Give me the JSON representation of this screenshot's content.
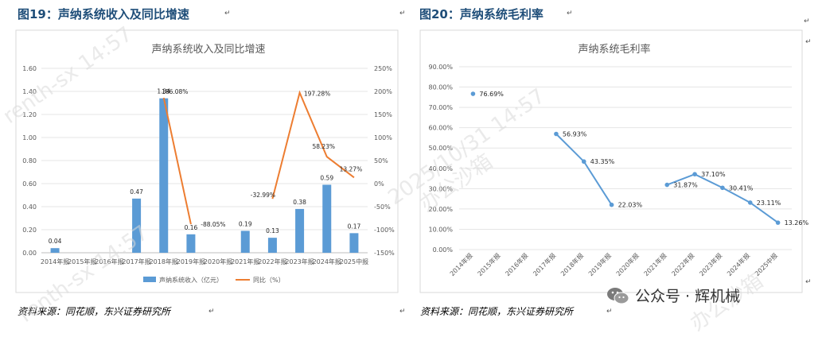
{
  "left": {
    "fig_title": "图19：声纳系统收入及同比增速",
    "source": "资料来源：同花顺，东兴证券研究所"
  },
  "right": {
    "fig_title": "图20：声纳系统毛利率",
    "source": "资料来源：同花顺，东兴证券研究所"
  },
  "watermark": {
    "line1": "renth-sx 14:57",
    "line2": "2025/10/31 14:57",
    "line3": "办公沙箱"
  },
  "wechat": {
    "label": "公众号 · 辉机械"
  },
  "colors": {
    "bar": "#5b9bd5",
    "line": "#ed7d31",
    "gross": "#5b9bd5",
    "title": "#1f4e79"
  },
  "chart_data": [
    {
      "type": "bar",
      "title": "声纳系统收入及同比增速",
      "categories": [
        "2014年报",
        "2015年报",
        "2016年报",
        "2017年报",
        "2018年报",
        "2019年报",
        "2020年报",
        "2021年报",
        "2022年报",
        "2023年报",
        "2024年报",
        "2025中报"
      ],
      "series": [
        {
          "name": "声纳系统收入（亿元）",
          "type": "bar",
          "axis": "left",
          "values": [
            0.04,
            null,
            null,
            0.47,
            1.34,
            0.16,
            null,
            0.19,
            0.13,
            0.38,
            0.59,
            0.17
          ],
          "labels": [
            "0.04",
            "",
            "",
            "0.47",
            "1.34",
            "0.16",
            "",
            "0.19",
            "0.13",
            "0.38",
            "0.59",
            "0.17"
          ]
        },
        {
          "name": "同比（%）",
          "type": "line",
          "axis": "right",
          "values": [
            null,
            null,
            null,
            null,
            186.08,
            -88.05,
            null,
            null,
            -32.99,
            197.28,
            58.23,
            13.27
          ],
          "labels": [
            "",
            "",
            "",
            "",
            "186.08%",
            "-88.05%",
            "",
            "",
            "-32.99%",
            "197.28%",
            "58.23%",
            "13.27%"
          ]
        }
      ],
      "ylim_left": [
        0,
        1.6
      ],
      "yticks_left": [
        "0.00",
        "0.20",
        "0.40",
        "0.60",
        "0.80",
        "1.00",
        "1.20",
        "1.40",
        "1.60"
      ],
      "ylim_right": [
        -150,
        250
      ],
      "yticks_right": [
        "-150%",
        "-100%",
        "-50%",
        "0%",
        "50%",
        "100%",
        "150%",
        "200%",
        "250%"
      ],
      "legend_position": "bottom",
      "grid": true
    },
    {
      "type": "line",
      "title": "声纳系统毛利率",
      "categories": [
        "2014年报",
        "2015年报",
        "2016年报",
        "2017年报",
        "2018年报",
        "2019年报",
        "2020年报",
        "2021年报",
        "2022年报",
        "2023年报",
        "2024年报",
        "2025中报"
      ],
      "series": [
        {
          "values": [
            76.69,
            null,
            null,
            56.93,
            43.35,
            22.03,
            null,
            31.87,
            37.1,
            30.41,
            23.11,
            13.26
          ],
          "labels": [
            "76.69%",
            "",
            "",
            "56.93%",
            "43.35%",
            "22.03%",
            "",
            "31.87%",
            "37.10%",
            "30.41%",
            "23.11%",
            "13.26%"
          ]
        }
      ],
      "ylim": [
        0,
        90
      ],
      "yticks": [
        "0.00%",
        "10.00%",
        "20.00%",
        "30.00%",
        "40.00%",
        "50.00%",
        "60.00%",
        "70.00%",
        "80.00%",
        "90.00%"
      ],
      "grid": true
    }
  ]
}
